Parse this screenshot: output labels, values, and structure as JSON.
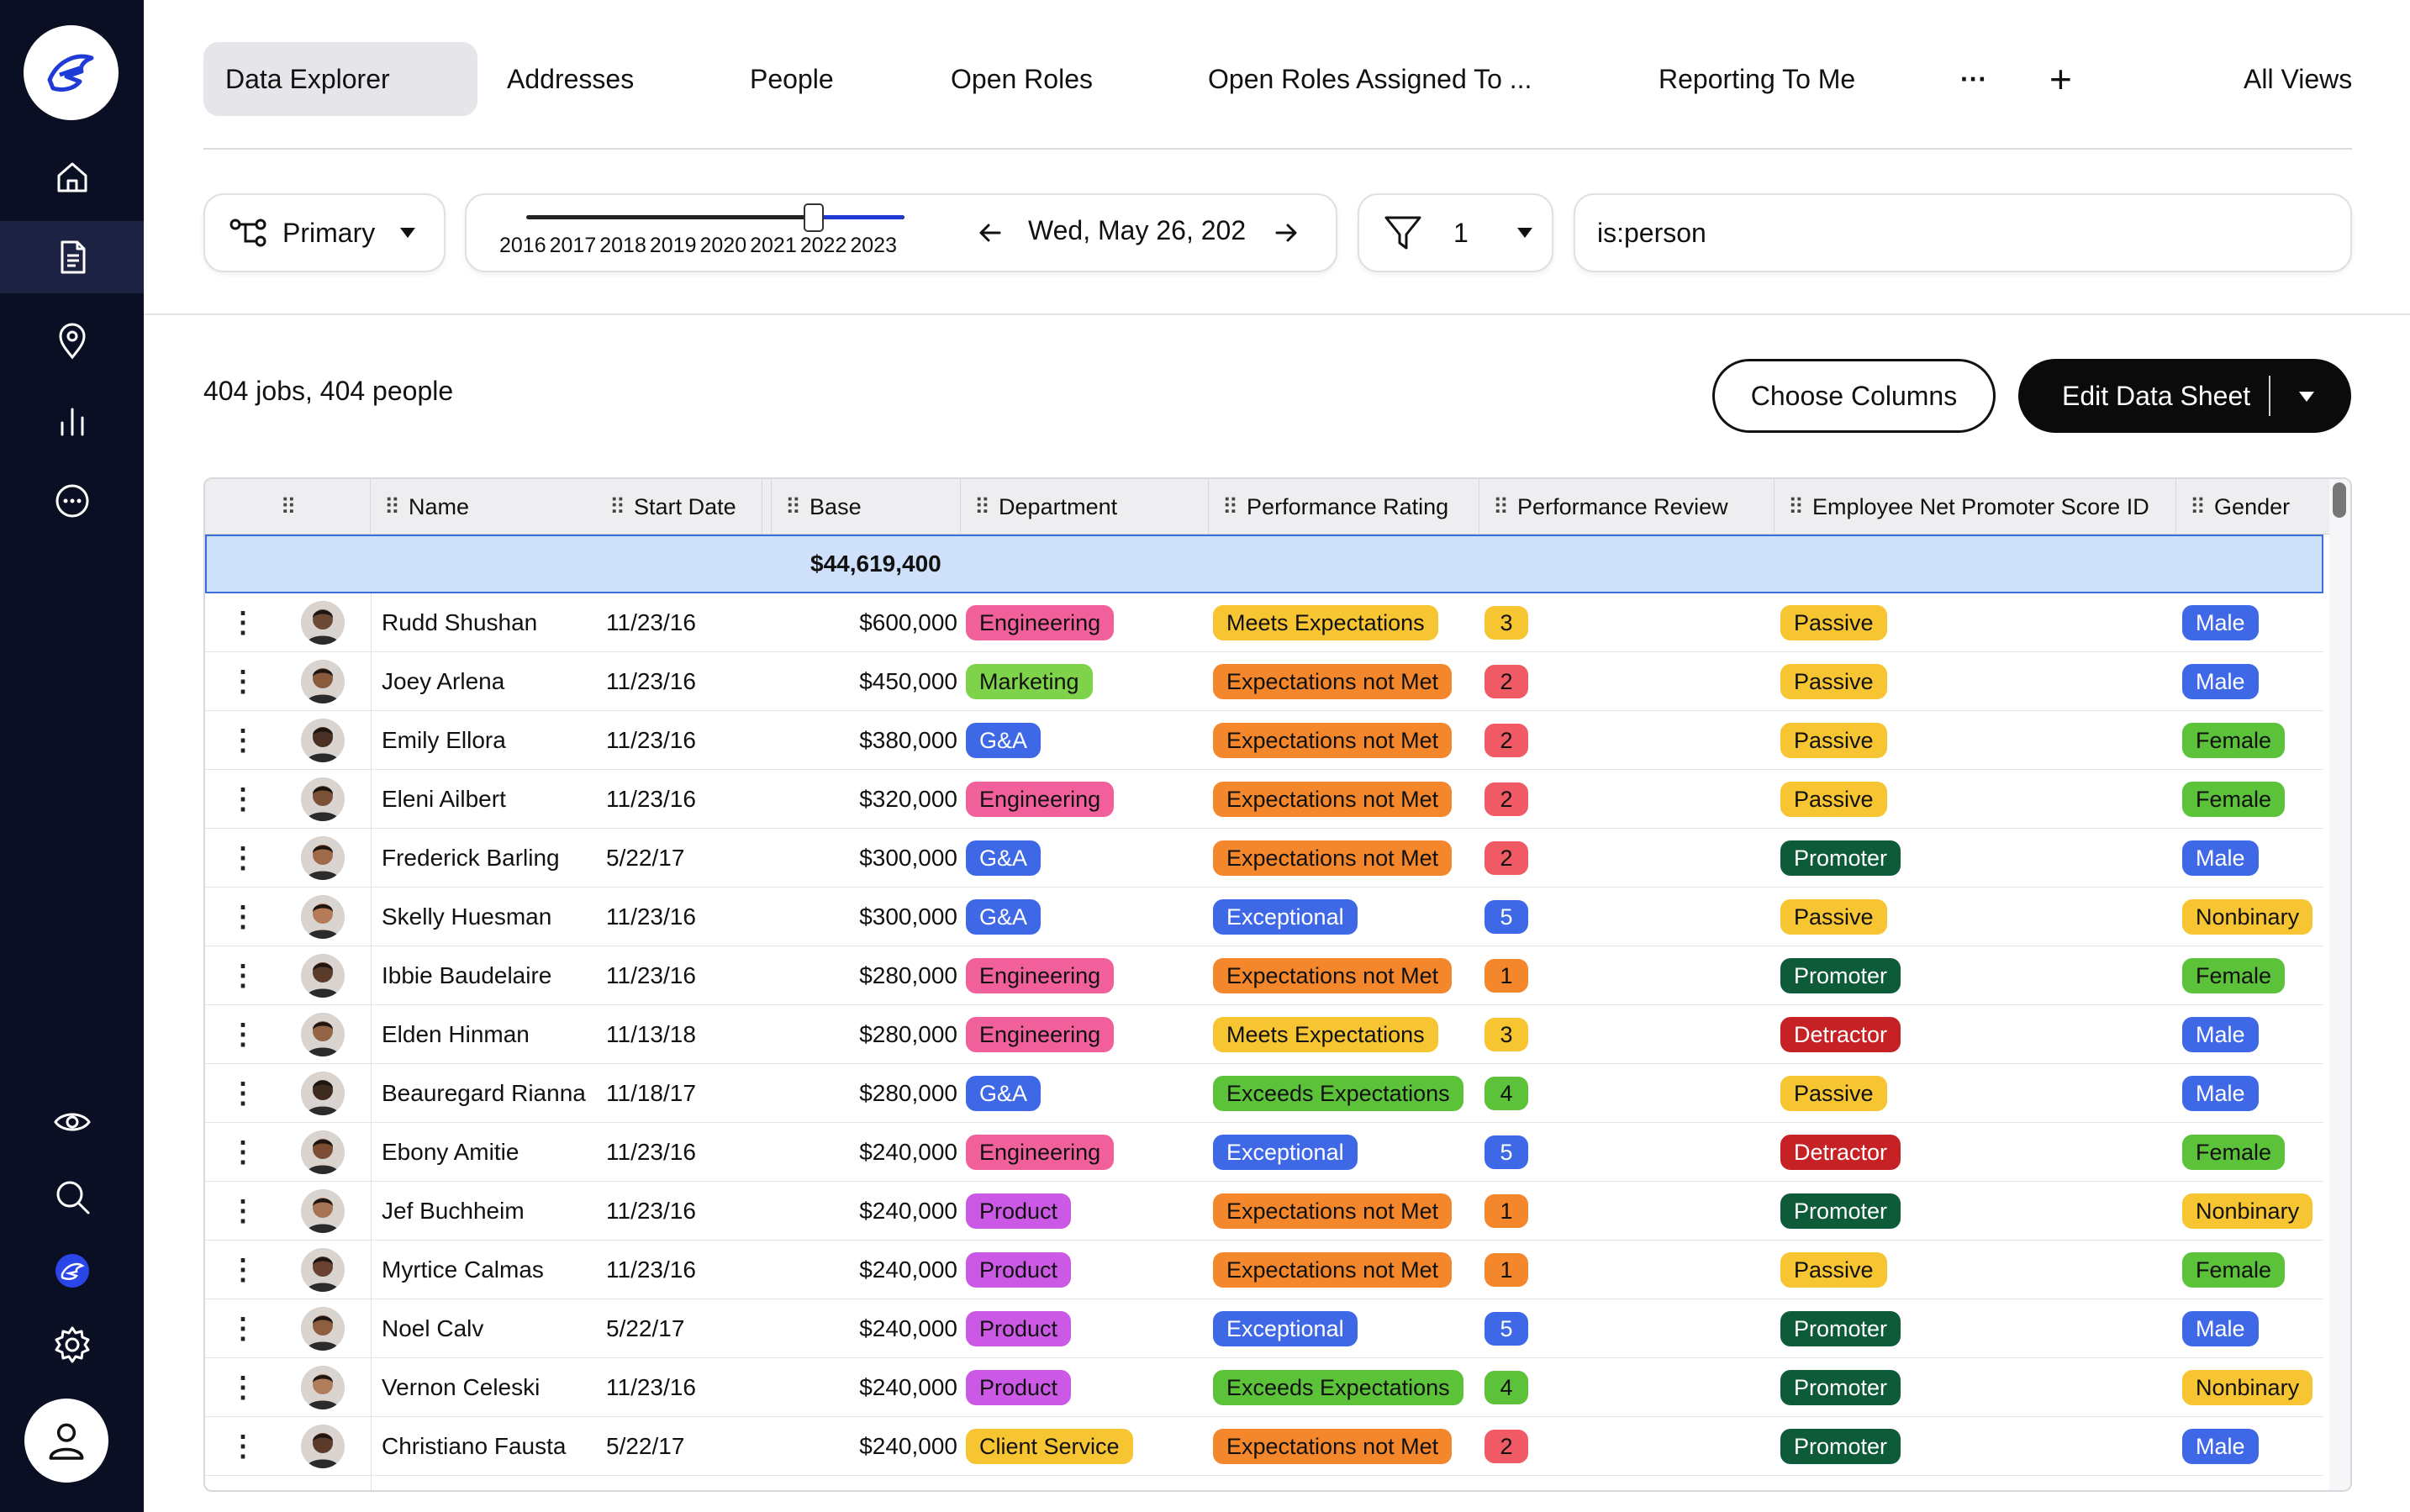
{
  "tabs": [
    "Data Explorer",
    "Addresses",
    "People",
    "Open Roles",
    "Open Roles Assigned To ...",
    "Reporting To Me",
    "···",
    "+",
    "All Views"
  ],
  "controls": {
    "primary": "Primary",
    "years": [
      "2016",
      "2017",
      "2018",
      "2019",
      "2020",
      "2021",
      "2022",
      "2023"
    ],
    "date": "Wed, May 26, 202",
    "filter_count": "1",
    "search": "is:person"
  },
  "summary": "404 jobs, 404 people",
  "buttons": {
    "choose": "Choose Columns",
    "edit": "Edit Data Sheet"
  },
  "columns": [
    "Name",
    "Start Date",
    "Base",
    "Department",
    "Performance Rating",
    "Performance Review",
    "Employee Net Promoter Score ID",
    "Gender"
  ],
  "total_base": "$44,619,400",
  "colors": {
    "accent": "#1f3bd6",
    "sidebar": "#0b0f24"
  },
  "rows": [
    {
      "name": "Rudd Shushan",
      "start": "11/23/16",
      "base": "$600,000",
      "dept": "Engineering",
      "rating": "Meets Expectations",
      "review": "3",
      "nps": "Passive",
      "gender": "Male"
    },
    {
      "name": "Joey Arlena",
      "start": "11/23/16",
      "base": "$450,000",
      "dept": "Marketing",
      "rating": "Expectations not Met",
      "review": "2",
      "nps": "Passive",
      "gender": "Male"
    },
    {
      "name": "Emily Ellora",
      "start": "11/23/16",
      "base": "$380,000",
      "dept": "G&A",
      "rating": "Expectations not Met",
      "review": "2",
      "nps": "Passive",
      "gender": "Female"
    },
    {
      "name": "Eleni Ailbert",
      "start": "11/23/16",
      "base": "$320,000",
      "dept": "Engineering",
      "rating": "Expectations not Met",
      "review": "2",
      "nps": "Passive",
      "gender": "Female"
    },
    {
      "name": "Frederick Barling",
      "start": "5/22/17",
      "base": "$300,000",
      "dept": "G&A",
      "rating": "Expectations not Met",
      "review": "2",
      "nps": "Promoter",
      "gender": "Male"
    },
    {
      "name": "Skelly Huesman",
      "start": "11/23/16",
      "base": "$300,000",
      "dept": "G&A",
      "rating": "Exceptional",
      "review": "5",
      "nps": "Passive",
      "gender": "Nonbinary"
    },
    {
      "name": "Ibbie Baudelaire",
      "start": "11/23/16",
      "base": "$280,000",
      "dept": "Engineering",
      "rating": "Expectations not Met",
      "review": "1",
      "nps": "Promoter",
      "gender": "Female"
    },
    {
      "name": "Elden Hinman",
      "start": "11/13/18",
      "base": "$280,000",
      "dept": "Engineering",
      "rating": "Meets Expectations",
      "review": "3",
      "nps": "Detractor",
      "gender": "Male"
    },
    {
      "name": "Beauregard Rianna",
      "start": "11/18/17",
      "base": "$280,000",
      "dept": "G&A",
      "rating": "Exceeds Expectations",
      "review": "4",
      "nps": "Passive",
      "gender": "Male"
    },
    {
      "name": "Ebony Amitie",
      "start": "11/23/16",
      "base": "$240,000",
      "dept": "Engineering",
      "rating": "Exceptional",
      "review": "5",
      "nps": "Detractor",
      "gender": "Female"
    },
    {
      "name": "Jef Buchheim",
      "start": "11/23/16",
      "base": "$240,000",
      "dept": "Product",
      "rating": "Expectations not Met",
      "review": "1",
      "nps": "Promoter",
      "gender": "Nonbinary"
    },
    {
      "name": "Myrtice Calmas",
      "start": "11/23/16",
      "base": "$240,000",
      "dept": "Product",
      "rating": "Expectations not Met",
      "review": "1",
      "nps": "Passive",
      "gender": "Female"
    },
    {
      "name": "Noel Calv",
      "start": "5/22/17",
      "base": "$240,000",
      "dept": "Product",
      "rating": "Exceptional",
      "review": "5",
      "nps": "Promoter",
      "gender": "Male"
    },
    {
      "name": "Vernon Celeski",
      "start": "11/23/16",
      "base": "$240,000",
      "dept": "Product",
      "rating": "Exceeds Expectations",
      "review": "4",
      "nps": "Promoter",
      "gender": "Nonbinary"
    },
    {
      "name": "Christiano Fausta",
      "start": "5/22/17",
      "base": "$240,000",
      "dept": "Client Service",
      "rating": "Expectations not Met",
      "review": "2",
      "nps": "Promoter",
      "gender": "Male"
    }
  ]
}
